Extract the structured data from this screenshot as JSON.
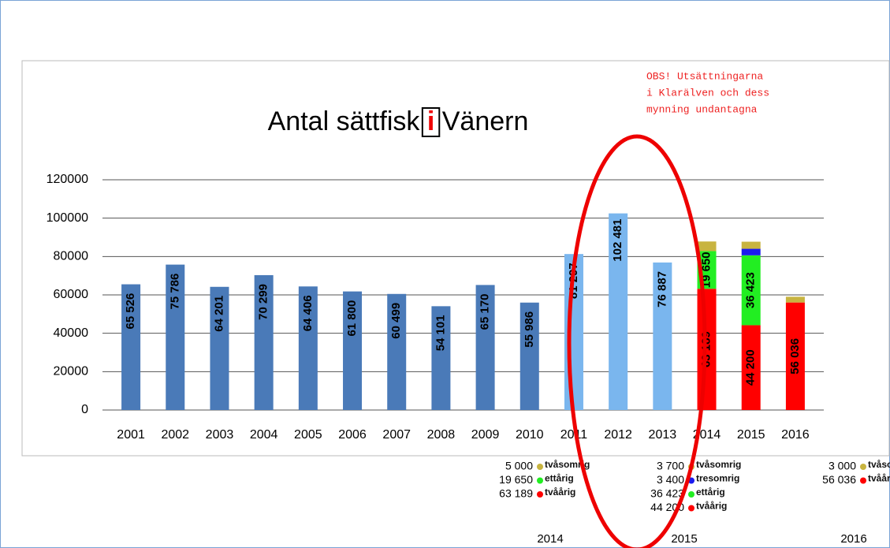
{
  "chart_data": {
    "type": "bar",
    "title": "Antal sättfisk i Vänern",
    "annotation": [
      "OBS! Utsättningarna",
      "i Klarälven och dess",
      "mynning undantagna"
    ],
    "categories": [
      "2001",
      "2002",
      "2003",
      "2004",
      "2005",
      "2006",
      "2007",
      "2008",
      "2009",
      "2010",
      "2011",
      "2012",
      "2013",
      "2014",
      "2015",
      "2016"
    ],
    "stacked": true,
    "series": [
      {
        "color": "#4a7ab8",
        "values": [
          65526,
          75786,
          64201,
          70299,
          64406,
          61800,
          60499,
          54101,
          65170,
          55986,
          null,
          null,
          null,
          null,
          null,
          null
        ],
        "value_labels": [
          "65 526",
          "75 786",
          "64 201",
          "70 299",
          "64 406",
          "61 800",
          "60 499",
          "54 101",
          "65 170",
          "55 986",
          null,
          null,
          null,
          null,
          null,
          null
        ]
      },
      {
        "color": "#7ab6ee",
        "values": [
          null,
          null,
          null,
          null,
          null,
          null,
          null,
          null,
          null,
          null,
          81297,
          102481,
          76887,
          null,
          null,
          null
        ],
        "value_labels": [
          null,
          null,
          null,
          null,
          null,
          null,
          null,
          null,
          null,
          null,
          "81 297",
          "102 481",
          "76 887",
          null,
          null,
          null
        ]
      },
      {
        "name": "tvåårig",
        "color": "#ff0000",
        "values": [
          null,
          null,
          null,
          null,
          null,
          null,
          null,
          null,
          null,
          null,
          null,
          null,
          null,
          63189,
          44200,
          56036
        ],
        "value_labels": [
          null,
          null,
          null,
          null,
          null,
          null,
          null,
          null,
          null,
          null,
          null,
          null,
          null,
          "63 189",
          "44 200",
          "56 036"
        ]
      },
      {
        "name": "ettårig",
        "color": "#22ee22",
        "values": [
          null,
          null,
          null,
          null,
          null,
          null,
          null,
          null,
          null,
          null,
          null,
          null,
          null,
          19650,
          36423,
          null
        ],
        "value_labels": [
          null,
          null,
          null,
          null,
          null,
          null,
          null,
          null,
          null,
          null,
          null,
          null,
          null,
          "19 650",
          "36 423",
          null
        ]
      },
      {
        "name": "tresomrig",
        "color": "#1a1aee",
        "values": [
          null,
          null,
          null,
          null,
          null,
          null,
          null,
          null,
          null,
          null,
          null,
          null,
          null,
          null,
          3400,
          null
        ],
        "value_labels": [
          null,
          null,
          null,
          null,
          null,
          null,
          null,
          null,
          null,
          null,
          null,
          null,
          null,
          null,
          "3 400",
          null
        ]
      },
      {
        "name": "tvåsomrig",
        "color": "#c8b440",
        "values": [
          null,
          null,
          null,
          null,
          null,
          null,
          null,
          null,
          null,
          null,
          null,
          null,
          null,
          5000,
          3700,
          3000
        ],
        "value_labels": [
          null,
          null,
          null,
          null,
          null,
          null,
          null,
          null,
          null,
          null,
          null,
          null,
          null,
          "5 000",
          "3 700",
          "3 000"
        ]
      }
    ],
    "ylim": [
      0,
      120000
    ],
    "yticks": [
      0,
      20000,
      40000,
      60000,
      80000,
      100000,
      120000
    ],
    "grid": true
  }
}
